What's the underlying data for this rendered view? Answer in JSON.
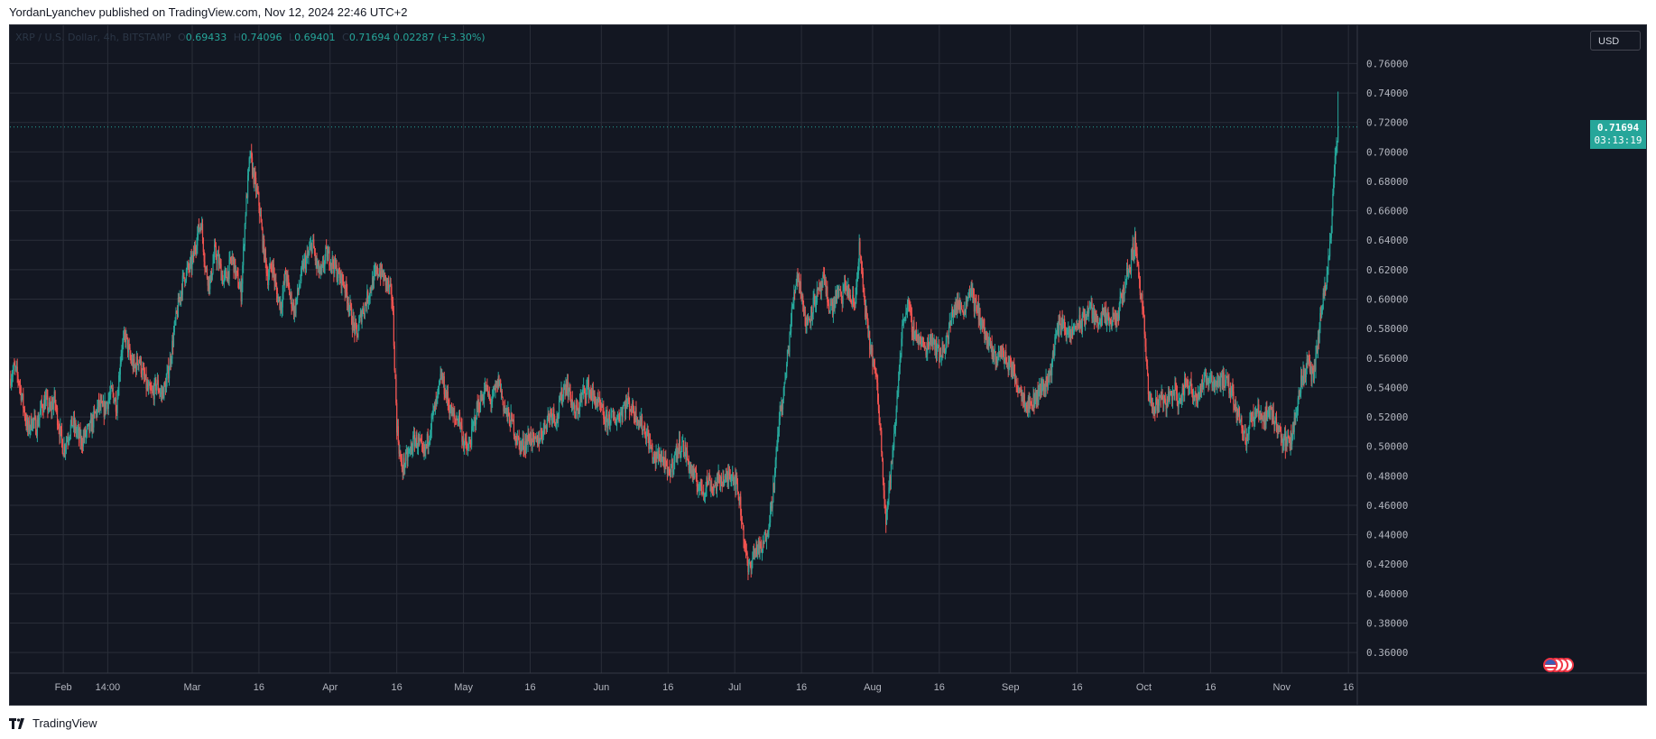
{
  "header": {
    "published_text": "YordanLyanchev published on TradingView.com, Nov 12, 2024 22:46 UTC+2"
  },
  "legend": {
    "symbol": "XRP / U.S. Dollar, 4h, BITSTAMP",
    "open_label": "O",
    "open": "0.69433",
    "high_label": "H",
    "high": "0.74096",
    "low_label": "L",
    "low": "0.69401",
    "close_label": "C",
    "close": "0.71694",
    "change": "0.02287 (+3.30%)"
  },
  "unit_label": "USD",
  "last_price": {
    "price": "0.71694",
    "countdown": "03:13:19"
  },
  "footer": {
    "brand": "TradingView"
  },
  "colors": {
    "up": "#26a69a",
    "down": "#ef5350",
    "background": "#131722",
    "grid": "#2a2e39"
  },
  "icons": {
    "events": "economic-event-icon",
    "logo": "tradingview-logo-icon"
  },
  "chart_data": {
    "type": "candlestick",
    "timeframe": "4h",
    "ylim": [
      0.346,
      0.786
    ],
    "y_ticks": [
      "0.36000",
      "0.38000",
      "0.40000",
      "0.42000",
      "0.44000",
      "0.46000",
      "0.48000",
      "0.50000",
      "0.52000",
      "0.54000",
      "0.56000",
      "0.58000",
      "0.60000",
      "0.62000",
      "0.64000",
      "0.66000",
      "0.68000",
      "0.70000",
      "0.72000",
      "0.74000",
      "0.76000"
    ],
    "x_ticks": [
      {
        "label": "Feb",
        "day": 31
      },
      {
        "label": "14:00",
        "day": 41
      },
      {
        "label": "Mar",
        "day": 60
      },
      {
        "label": "16",
        "day": 75
      },
      {
        "label": "Apr",
        "day": 91
      },
      {
        "label": "16",
        "day": 106
      },
      {
        "label": "May",
        "day": 121
      },
      {
        "label": "16",
        "day": 136
      },
      {
        "label": "Jun",
        "day": 152
      },
      {
        "label": "16",
        "day": 167
      },
      {
        "label": "Jul",
        "day": 182
      },
      {
        "label": "16",
        "day": 197
      },
      {
        "label": "Aug",
        "day": 213
      },
      {
        "label": "16",
        "day": 228
      },
      {
        "label": "Sep",
        "day": 244
      },
      {
        "label": "16",
        "day": 259
      },
      {
        "label": "Oct",
        "day": 274
      },
      {
        "label": "16",
        "day": 289
      },
      {
        "label": "Nov",
        "day": 305
      },
      {
        "label": "16",
        "day": 320
      }
    ],
    "x_range_days": [
      19,
      322
    ],
    "close_path": [
      [
        19,
        0.546
      ],
      [
        20,
        0.553
      ],
      [
        21,
        0.545
      ],
      [
        22,
        0.528
      ],
      [
        23,
        0.511
      ],
      [
        24,
        0.518
      ],
      [
        25,
        0.513
      ],
      [
        26,
        0.526
      ],
      [
        27,
        0.531
      ],
      [
        28,
        0.524
      ],
      [
        29,
        0.532
      ],
      [
        30,
        0.514
      ],
      [
        31,
        0.498
      ],
      [
        32,
        0.507
      ],
      [
        33,
        0.516
      ],
      [
        34,
        0.51
      ],
      [
        35,
        0.503
      ],
      [
        36,
        0.508
      ],
      [
        37,
        0.512
      ],
      [
        38,
        0.52
      ],
      [
        39,
        0.528
      ],
      [
        40,
        0.524
      ],
      [
        41,
        0.531
      ],
      [
        42,
        0.537
      ],
      [
        43,
        0.528
      ],
      [
        44,
        0.565
      ],
      [
        45,
        0.575
      ],
      [
        46,
        0.56
      ],
      [
        47,
        0.553
      ],
      [
        48,
        0.56
      ],
      [
        49,
        0.548
      ],
      [
        50,
        0.538
      ],
      [
        51,
        0.535
      ],
      [
        52,
        0.543
      ],
      [
        53,
        0.535
      ],
      [
        54,
        0.541
      ],
      [
        55,
        0.557
      ],
      [
        56,
        0.58
      ],
      [
        57,
        0.598
      ],
      [
        58,
        0.614
      ],
      [
        59,
        0.62
      ],
      [
        60,
        0.624
      ],
      [
        61,
        0.642
      ],
      [
        62,
        0.653
      ],
      [
        63,
        0.62
      ],
      [
        64,
        0.61
      ],
      [
        65,
        0.632
      ],
      [
        66,
        0.625
      ],
      [
        67,
        0.612
      ],
      [
        68,
        0.618
      ],
      [
        69,
        0.628
      ],
      [
        70,
        0.615
      ],
      [
        71,
        0.604
      ],
      [
        72,
        0.66
      ],
      [
        73,
        0.698
      ],
      [
        74,
        0.68
      ],
      [
        75,
        0.665
      ],
      [
        76,
        0.635
      ],
      [
        77,
        0.615
      ],
      [
        78,
        0.624
      ],
      [
        79,
        0.603
      ],
      [
        80,
        0.596
      ],
      [
        81,
        0.618
      ],
      [
        82,
        0.602
      ],
      [
        83,
        0.592
      ],
      [
        84,
        0.608
      ],
      [
        85,
        0.623
      ],
      [
        86,
        0.628
      ],
      [
        87,
        0.639
      ],
      [
        88,
        0.622
      ],
      [
        89,
        0.616
      ],
      [
        90,
        0.63
      ],
      [
        91,
        0.628
      ],
      [
        92,
        0.622
      ],
      [
        93,
        0.615
      ],
      [
        94,
        0.612
      ],
      [
        95,
        0.6
      ],
      [
        96,
        0.585
      ],
      [
        97,
        0.575
      ],
      [
        98,
        0.59
      ],
      [
        99,
        0.597
      ],
      [
        100,
        0.607
      ],
      [
        101,
        0.615
      ],
      [
        102,
        0.62
      ],
      [
        103,
        0.615
      ],
      [
        104,
        0.609
      ],
      [
        105,
        0.6
      ],
      [
        106,
        0.515
      ],
      [
        107,
        0.485
      ],
      [
        108,
        0.49
      ],
      [
        109,
        0.497
      ],
      [
        110,
        0.505
      ],
      [
        111,
        0.502
      ],
      [
        112,
        0.493
      ],
      [
        113,
        0.505
      ],
      [
        114,
        0.52
      ],
      [
        115,
        0.53
      ],
      [
        116,
        0.548
      ],
      [
        117,
        0.536
      ],
      [
        118,
        0.525
      ],
      [
        119,
        0.518
      ],
      [
        120,
        0.52
      ],
      [
        121,
        0.503
      ],
      [
        122,
        0.497
      ],
      [
        123,
        0.51
      ],
      [
        124,
        0.525
      ],
      [
        125,
        0.532
      ],
      [
        126,
        0.54
      ],
      [
        127,
        0.53
      ],
      [
        128,
        0.536
      ],
      [
        129,
        0.545
      ],
      [
        130,
        0.528
      ],
      [
        131,
        0.52
      ],
      [
        132,
        0.516
      ],
      [
        133,
        0.505
      ],
      [
        134,
        0.5
      ],
      [
        135,
        0.503
      ],
      [
        136,
        0.507
      ],
      [
        137,
        0.501
      ],
      [
        138,
        0.506
      ],
      [
        139,
        0.512
      ],
      [
        140,
        0.52
      ],
      [
        141,
        0.524
      ],
      [
        142,
        0.518
      ],
      [
        143,
        0.534
      ],
      [
        144,
        0.543
      ],
      [
        145,
        0.535
      ],
      [
        146,
        0.521
      ],
      [
        147,
        0.528
      ],
      [
        148,
        0.537
      ],
      [
        149,
        0.54
      ],
      [
        150,
        0.534
      ],
      [
        151,
        0.53
      ],
      [
        152,
        0.524
      ],
      [
        153,
        0.516
      ],
      [
        154,
        0.52
      ],
      [
        155,
        0.518
      ],
      [
        156,
        0.521
      ],
      [
        157,
        0.527
      ],
      [
        158,
        0.53
      ],
      [
        159,
        0.525
      ],
      [
        160,
        0.521
      ],
      [
        161,
        0.515
      ],
      [
        162,
        0.51
      ],
      [
        163,
        0.5
      ],
      [
        164,
        0.49
      ],
      [
        165,
        0.495
      ],
      [
        166,
        0.49
      ],
      [
        167,
        0.48
      ],
      [
        168,
        0.488
      ],
      [
        169,
        0.497
      ],
      [
        170,
        0.502
      ],
      [
        171,
        0.495
      ],
      [
        172,
        0.485
      ],
      [
        173,
        0.478
      ],
      [
        174,
        0.473
      ],
      [
        175,
        0.47
      ],
      [
        176,
        0.478
      ],
      [
        177,
        0.472
      ],
      [
        178,
        0.475
      ],
      [
        179,
        0.479
      ],
      [
        180,
        0.476
      ],
      [
        181,
        0.483
      ],
      [
        182,
        0.479
      ],
      [
        183,
        0.465
      ],
      [
        184,
        0.44
      ],
      [
        185,
        0.415
      ],
      [
        186,
        0.425
      ],
      [
        187,
        0.432
      ],
      [
        188,
        0.428
      ],
      [
        189,
        0.44
      ],
      [
        190,
        0.455
      ],
      [
        191,
        0.48
      ],
      [
        192,
        0.52
      ],
      [
        193,
        0.535
      ],
      [
        194,
        0.565
      ],
      [
        195,
        0.595
      ],
      [
        196,
        0.618
      ],
      [
        197,
        0.605
      ],
      [
        198,
        0.582
      ],
      [
        199,
        0.59
      ],
      [
        200,
        0.6
      ],
      [
        201,
        0.604
      ],
      [
        202,
        0.612
      ],
      [
        203,
        0.598
      ],
      [
        204,
        0.593
      ],
      [
        205,
        0.605
      ],
      [
        206,
        0.6
      ],
      [
        207,
        0.61
      ],
      [
        208,
        0.6
      ],
      [
        209,
        0.596
      ],
      [
        210,
        0.635
      ],
      [
        211,
        0.603
      ],
      [
        212,
        0.575
      ],
      [
        213,
        0.56
      ],
      [
        214,
        0.54
      ],
      [
        215,
        0.5
      ],
      [
        216,
        0.45
      ],
      [
        217,
        0.48
      ],
      [
        218,
        0.51
      ],
      [
        219,
        0.555
      ],
      [
        220,
        0.59
      ],
      [
        221,
        0.595
      ],
      [
        222,
        0.58
      ],
      [
        223,
        0.575
      ],
      [
        224,
        0.57
      ],
      [
        225,
        0.565
      ],
      [
        226,
        0.575
      ],
      [
        227,
        0.57
      ],
      [
        228,
        0.562
      ],
      [
        229,
        0.567
      ],
      [
        230,
        0.575
      ],
      [
        231,
        0.592
      ],
      [
        232,
        0.597
      ],
      [
        233,
        0.593
      ],
      [
        234,
        0.596
      ],
      [
        235,
        0.61
      ],
      [
        236,
        0.595
      ],
      [
        237,
        0.59
      ],
      [
        238,
        0.578
      ],
      [
        239,
        0.57
      ],
      [
        240,
        0.562
      ],
      [
        241,
        0.56
      ],
      [
        242,
        0.565
      ],
      [
        243,
        0.558
      ],
      [
        244,
        0.555
      ],
      [
        245,
        0.547
      ],
      [
        246,
        0.54
      ],
      [
        247,
        0.533
      ],
      [
        248,
        0.528
      ],
      [
        249,
        0.53
      ],
      [
        250,
        0.535
      ],
      [
        251,
        0.54
      ],
      [
        252,
        0.543
      ],
      [
        253,
        0.55
      ],
      [
        254,
        0.572
      ],
      [
        255,
        0.583
      ],
      [
        256,
        0.585
      ],
      [
        257,
        0.573
      ],
      [
        258,
        0.578
      ],
      [
        259,
        0.584
      ],
      [
        260,
        0.583
      ],
      [
        261,
        0.59
      ],
      [
        262,
        0.595
      ],
      [
        263,
        0.585
      ],
      [
        264,
        0.588
      ],
      [
        265,
        0.588
      ],
      [
        266,
        0.584
      ],
      [
        267,
        0.585
      ],
      [
        268,
        0.587
      ],
      [
        269,
        0.6
      ],
      [
        270,
        0.615
      ],
      [
        271,
        0.625
      ],
      [
        272,
        0.64
      ],
      [
        273,
        0.613
      ],
      [
        274,
        0.585
      ],
      [
        275,
        0.535
      ],
      [
        276,
        0.525
      ],
      [
        277,
        0.53
      ],
      [
        278,
        0.534
      ],
      [
        279,
        0.53
      ],
      [
        280,
        0.535
      ],
      [
        281,
        0.538
      ],
      [
        282,
        0.528
      ],
      [
        283,
        0.54
      ],
      [
        284,
        0.544
      ],
      [
        285,
        0.537
      ],
      [
        286,
        0.535
      ],
      [
        287,
        0.541
      ],
      [
        288,
        0.545
      ],
      [
        289,
        0.548
      ],
      [
        290,
        0.542
      ],
      [
        291,
        0.546
      ],
      [
        292,
        0.544
      ],
      [
        293,
        0.54
      ],
      [
        294,
        0.535
      ],
      [
        295,
        0.523
      ],
      [
        296,
        0.516
      ],
      [
        297,
        0.505
      ],
      [
        298,
        0.518
      ],
      [
        299,
        0.52
      ],
      [
        300,
        0.524
      ],
      [
        301,
        0.518
      ],
      [
        302,
        0.525
      ],
      [
        303,
        0.52
      ],
      [
        304,
        0.515
      ],
      [
        305,
        0.506
      ],
      [
        306,
        0.502
      ],
      [
        307,
        0.504
      ],
      [
        308,
        0.518
      ],
      [
        309,
        0.54
      ],
      [
        310,
        0.55
      ],
      [
        311,
        0.556
      ],
      [
        312,
        0.546
      ],
      [
        313,
        0.566
      ],
      [
        314,
        0.595
      ],
      [
        315,
        0.61
      ],
      [
        316,
        0.64
      ],
      [
        317,
        0.695
      ],
      [
        317.7,
        0.71694
      ]
    ],
    "last_close": 0.71694,
    "period_high": 0.74096
  }
}
